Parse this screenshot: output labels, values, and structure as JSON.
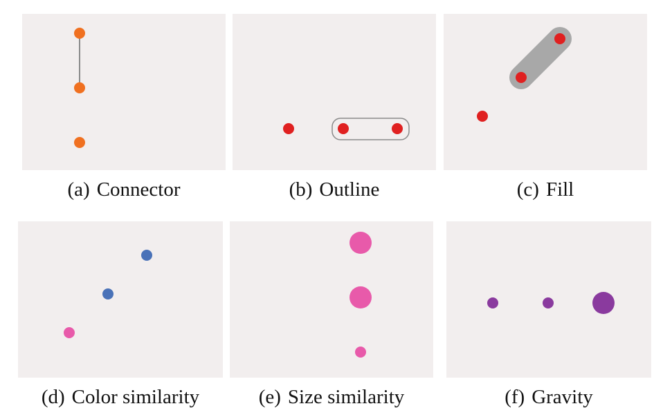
{
  "colors": {
    "background": "#f2eeee",
    "orange": "#f07020",
    "red": "#e02020",
    "blue": "#4a72b8",
    "pink": "#e85aaa",
    "purple": "#8a3a9e",
    "connector_line": "#8a8a8a",
    "fill_band": "#a8a8a8"
  },
  "panels": [
    {
      "tag": "(a)",
      "caption": "Connector"
    },
    {
      "tag": "(b)",
      "caption": "Outline"
    },
    {
      "tag": "(c)",
      "caption": "Fill"
    },
    {
      "tag": "(d)",
      "caption": "Color similarity"
    },
    {
      "tag": "(e)",
      "caption": "Size similarity"
    },
    {
      "tag": "(f)",
      "caption": "Gravity"
    }
  ]
}
